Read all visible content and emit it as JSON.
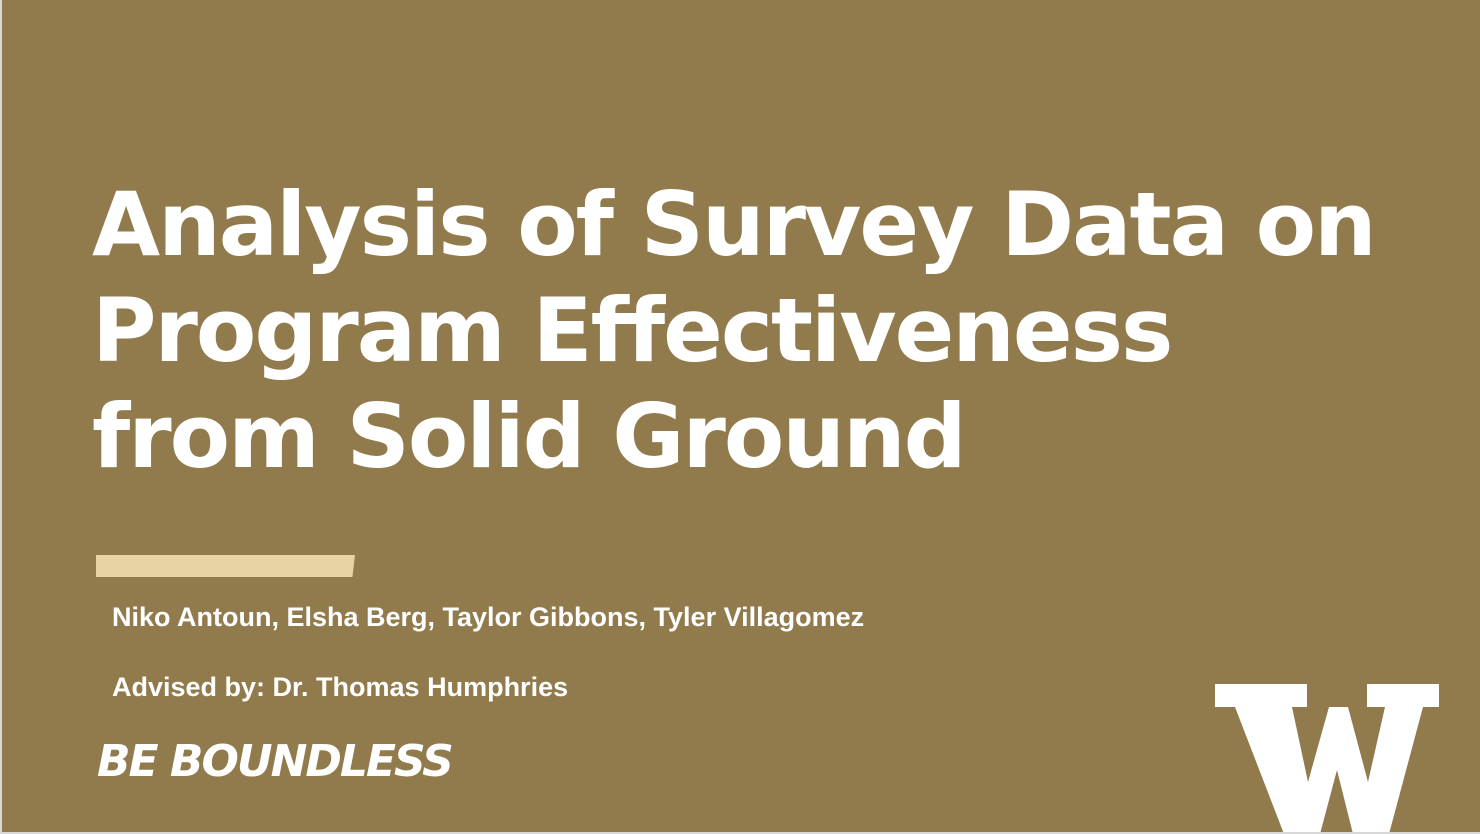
{
  "slide": {
    "title_lines": [
      "Analysis of Survey Data on",
      "Program Effectiveness",
      "from Solid Ground"
    ],
    "authors": "Niko Antoun, Elsha Berg, Taylor Gibbons, Tyler Villagomez",
    "advisor": "Advised by: Dr. Thomas Humphries",
    "tagline": "BE BOUNDLESS",
    "logo_letter": "W"
  },
  "colors": {
    "background": "#917b4c",
    "accent": "#e8d3a2",
    "text": "#ffffff"
  }
}
